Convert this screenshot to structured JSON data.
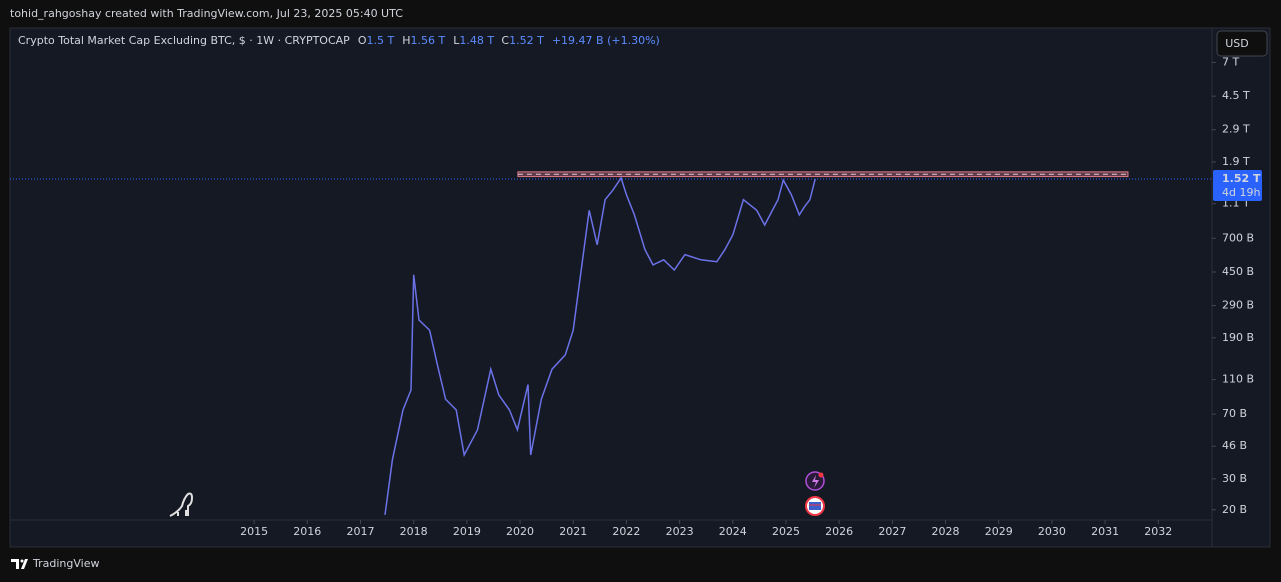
{
  "header": {
    "credit": "tohid_rahgoshay created with TradingView.com, Jul 23, 2025 05:40 UTC"
  },
  "footer": {
    "brand": "TradingView"
  },
  "currency_button": "USD",
  "chart_data": {
    "type": "line",
    "title": "Crypto Total Market Cap Excluding BTC, $ · 1W · CRYPTOCAP",
    "ohlc": [
      {
        "key": "O",
        "text": "1.5 T"
      },
      {
        "key": "H",
        "text": "1.56 T"
      },
      {
        "key": "L",
        "text": "1.48 T"
      },
      {
        "key": "C",
        "text": "1.52 T"
      }
    ],
    "change": "+19.47 B (+1.30%)",
    "log_scale": true,
    "x": [
      2017.46,
      2017.6,
      2017.8,
      2017.95,
      2018.0,
      2018.1,
      2018.3,
      2018.45,
      2018.6,
      2018.8,
      2018.95,
      2019.2,
      2019.45,
      2019.6,
      2019.8,
      2019.95,
      2020.15,
      2020.2,
      2020.4,
      2020.6,
      2020.85,
      2021.0,
      2021.15,
      2021.3,
      2021.45,
      2021.6,
      2021.75,
      2021.9,
      2022.0,
      2022.15,
      2022.35,
      2022.5,
      2022.7,
      2022.9,
      2023.1,
      2023.4,
      2023.7,
      2023.85,
      2024.0,
      2024.2,
      2024.45,
      2024.6,
      2024.85,
      2024.95,
      2025.1,
      2025.25,
      2025.35,
      2025.45,
      2025.55
    ],
    "series": [
      {
        "color": "#6b72e8",
        "values": [
          18700000000.0,
          38500000000.0,
          74000000000.0,
          96000000000.0,
          434000000000.0,
          240000000000.0,
          210000000000.0,
          132000000000.0,
          85000000000.0,
          74000000000.0,
          41000000000.0,
          57000000000.0,
          126000000000.0,
          90000000000.0,
          74000000000.0,
          57000000000.0,
          103000000000.0,
          41000000000.0,
          85000000000.0,
          126000000000.0,
          152000000000.0,
          210000000000.0,
          462000000000.0,
          1010000000000.0,
          643000000000.0,
          1160000000000.0,
          1320000000000.0,
          1540000000000.0,
          1240000000000.0,
          950000000000.0,
          603000000000.0,
          494000000000.0,
          528000000000.0,
          462000000000.0,
          565000000000.0,
          528000000000.0,
          515000000000.0,
          603000000000.0,
          731000000000.0,
          1160000000000.0,
          1010000000000.0,
          833000000000.0,
          1160000000000.0,
          1500000000000.0,
          1240000000000.0,
          950000000000.0,
          1060000000000.0,
          1160000000000.0,
          1520000000000.0
        ]
      }
    ],
    "xlim": [
      2010.41,
      2033.01
    ],
    "xticks": [
      2015,
      2016,
      2017,
      2018,
      2019,
      2020,
      2021,
      2022,
      2023,
      2024,
      2025,
      2026,
      2027,
      2028,
      2029,
      2030,
      2031,
      2032
    ],
    "ylim": [
      17500000000.0,
      10700000000000.0
    ],
    "yticks": [
      {
        "value": 20000000000.0,
        "label": "20 B"
      },
      {
        "value": 30000000000.0,
        "label": "30 B"
      },
      {
        "value": 46000000000.0,
        "label": "46 B"
      },
      {
        "value": 70000000000.0,
        "label": "70 B"
      },
      {
        "value": 110000000000.0,
        "label": "110 B"
      },
      {
        "value": 190000000000.0,
        "label": "190 B"
      },
      {
        "value": 290000000000.0,
        "label": "290 B"
      },
      {
        "value": 450000000000.0,
        "label": "450 B"
      },
      {
        "value": 700000000000.0,
        "label": "700 B"
      },
      {
        "value": 1100000000000.0,
        "label": "1.1 T"
      },
      {
        "value": 1900000000000.0,
        "label": "1.9 T"
      },
      {
        "value": 2900000000000.0,
        "label": "2.9 T"
      },
      {
        "value": 4500000000000.0,
        "label": "4.5 T"
      },
      {
        "value": 7000000000000.0,
        "label": "7 T"
      }
    ],
    "zone": {
      "xlim": [
        2019.96,
        2031.43
      ],
      "ylim": [
        1570000000000.0,
        1670000000000.0
      ],
      "color": "#e07a8a"
    },
    "last": {
      "value": 1520000000000.0,
      "label": "1.52 T",
      "countdown": "4d 19h",
      "color": "#2962ff"
    }
  }
}
